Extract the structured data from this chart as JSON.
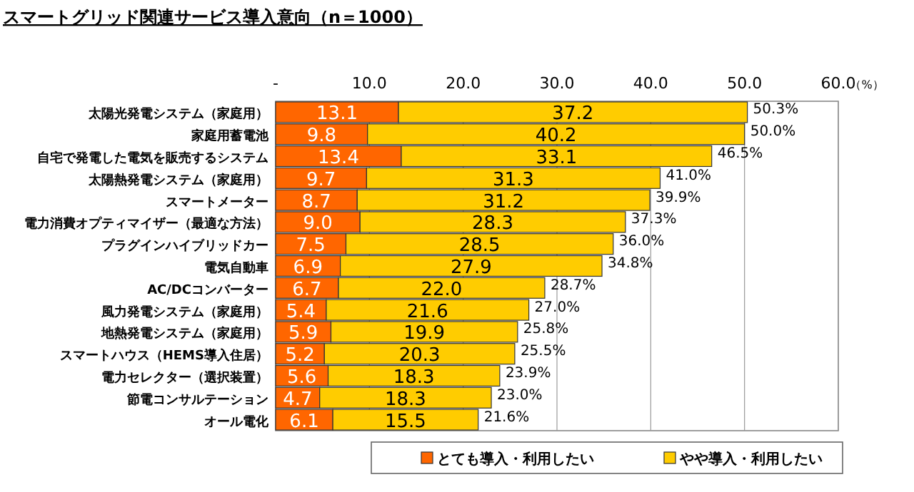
{
  "chart_data": {
    "type": "bar",
    "orientation": "horizontal",
    "stacked": true,
    "title": "スマートグリッド関連サービス導入意向（n＝1000）",
    "xlabel": "（%）",
    "categories": [
      "太陽光発電システム（家庭用）",
      "家庭用蓄電池",
      "自宅で発電した電気を販売するシステム",
      "太陽熱発電システム（家庭用）",
      "スマートメーター",
      "電力消費オプティマイザー（最適な方法）",
      "プラグインハイブリッドカー",
      "電気自動車",
      "AC/DCコンバーター",
      "風力発電システム（家庭用）",
      "地熱発電システム（家庭用）",
      "スマートハウス（HEMS導入住居）",
      "電力セレクター（選択装置）",
      "節電コンサルテーション",
      "オール電化"
    ],
    "series": [
      {
        "name": "とても導入・利用したい",
        "color": "#ff6600",
        "values": [
          13.1,
          9.8,
          13.4,
          9.7,
          8.7,
          9.0,
          7.5,
          6.9,
          6.7,
          5.4,
          5.9,
          5.2,
          5.6,
          4.7,
          6.1
        ],
        "value_labels": [
          "13.1",
          "9.8",
          "13.4",
          "9.7",
          "8.7",
          "9.0",
          "7.5",
          "6.9",
          "6.7",
          "5.4",
          "5.9",
          "5.2",
          "5.6",
          "4.7",
          "6.1"
        ]
      },
      {
        "name": "やや導入・利用したい",
        "color": "#ffcc00",
        "values": [
          37.2,
          40.2,
          33.1,
          31.3,
          31.2,
          28.3,
          28.5,
          27.9,
          22.0,
          21.6,
          19.9,
          20.3,
          18.3,
          18.3,
          15.5
        ],
        "value_labels": [
          "37.2",
          "40.2",
          "33.1",
          "31.3",
          "31.2",
          "28.3",
          "28.5",
          "27.9",
          "22.0",
          "21.6",
          "19.9",
          "20.3",
          "18.3",
          "18.3",
          "15.5"
        ]
      }
    ],
    "totals": [
      "50.3%",
      "50.0%",
      "46.5%",
      "41.0%",
      "39.9%",
      "37.3%",
      "36.0%",
      "34.8%",
      "28.7%",
      "27.0%",
      "25.8%",
      "25.5%",
      "23.9%",
      "23.0%",
      "21.6%"
    ],
    "xlim": [
      0,
      60
    ],
    "xticks": [
      {
        "value": 0,
        "label": "-"
      },
      {
        "value": 10,
        "label": "10.0"
      },
      {
        "value": 20,
        "label": "20.0"
      },
      {
        "value": 30,
        "label": "30.0"
      },
      {
        "value": 40,
        "label": "40.0"
      },
      {
        "value": 50,
        "label": "50.0"
      },
      {
        "value": 60,
        "label": "60.0"
      }
    ],
    "grid": "x",
    "legend": "bottom"
  }
}
